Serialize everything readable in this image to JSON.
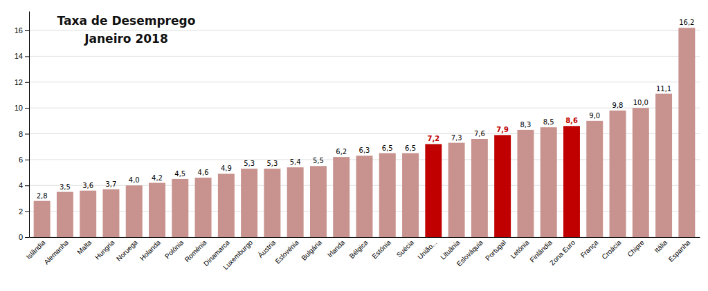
{
  "chart_data": {
    "type": "bar",
    "title": "Taxa de Desemprego",
    "subtitle": "Janeiro 2018",
    "categories": [
      "Islândia",
      "Alemanha",
      "Malta",
      "Hungria",
      "Noruega",
      "Holanda",
      "Polónia",
      "Roménia",
      "Dinamarca",
      "Luxemburgo",
      "Áustria",
      "Eslovénia",
      "Bulgária",
      "Irlanda",
      "Bélgica",
      "Estónia",
      "Suécia",
      "União...",
      "Lituânia",
      "Eslováquia",
      "Portugal",
      "Letónia",
      "Finlândia",
      "Zona Euro",
      "França",
      "Croácia",
      "Chipre",
      "Itália",
      "Espanha"
    ],
    "values": [
      2.8,
      3.5,
      3.6,
      3.7,
      4.0,
      4.2,
      4.5,
      4.6,
      4.9,
      5.3,
      5.3,
      5.4,
      5.5,
      6.2,
      6.3,
      6.5,
      6.5,
      7.2,
      7.3,
      7.6,
      7.9,
      8.3,
      8.5,
      8.6,
      9.0,
      9.8,
      10.0,
      11.1,
      16.2
    ],
    "value_labels": [
      "2,8",
      "3,5",
      "3,6",
      "3,7",
      "4,0",
      "4,2",
      "4,5",
      "4,6",
      "4,9",
      "5,3",
      "5,3",
      "5,4",
      "5,5",
      "6,2",
      "6,3",
      "6,5",
      "6,5",
      "7,2",
      "7,3",
      "7,6",
      "7,9",
      "8,3",
      "8,5",
      "8,6",
      "9,0",
      "9,8",
      "10,0",
      "11,1",
      "16,2"
    ],
    "colors": [
      "#c8938e",
      "#c8938e",
      "#c8938e",
      "#c8938e",
      "#c8938e",
      "#c8938e",
      "#c8938e",
      "#c8938e",
      "#c8938e",
      "#c8938e",
      "#c8938e",
      "#c8938e",
      "#c8938e",
      "#c8938e",
      "#c8938e",
      "#c8938e",
      "#c8938e",
      "#c00000",
      "#c8938e",
      "#c8938e",
      "#c00000",
      "#c8938e",
      "#c8938e",
      "#c00000",
      "#c8938e",
      "#c8938e",
      "#c8938e",
      "#c8938e",
      "#c8938e"
    ],
    "data_labels": true,
    "ylim": [
      0,
      17.5
    ],
    "yticks": [
      0,
      2,
      4,
      6,
      8,
      10,
      12,
      14,
      16
    ],
    "grid": true
  }
}
